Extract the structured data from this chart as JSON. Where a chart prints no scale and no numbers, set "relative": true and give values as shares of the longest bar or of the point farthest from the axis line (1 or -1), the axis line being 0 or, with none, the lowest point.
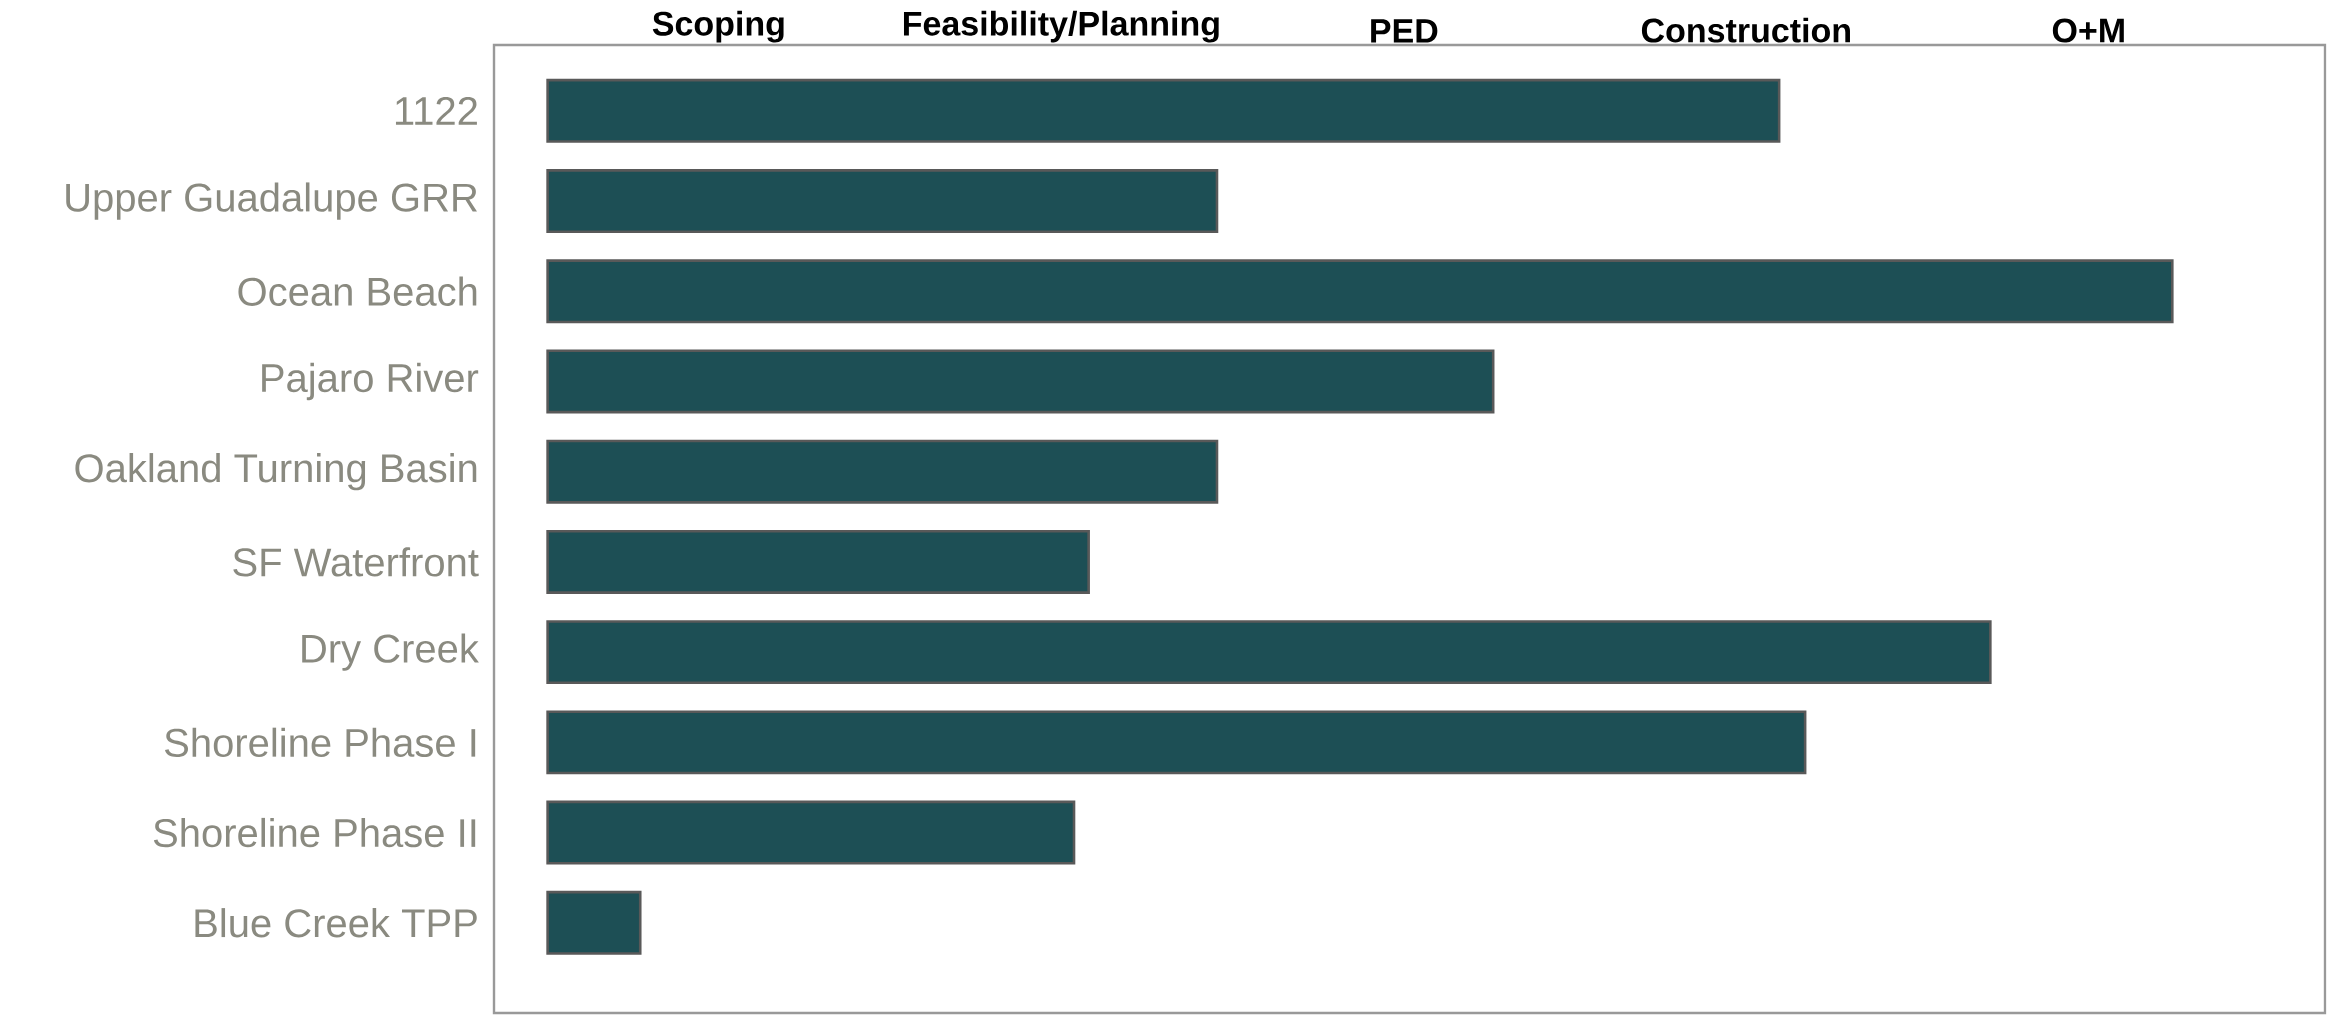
{
  "chart_data": {
    "type": "bar",
    "orientation": "horizontal",
    "relative": true,
    "categories": [
      "1122",
      "Upper Guadalupe GRR",
      "Ocean Beach",
      "Pajaro River",
      "Oakland Turning Basin",
      "SF Waterfront",
      "Dry Creek",
      "Shoreline Phase I",
      "Shoreline Phase II",
      "Blue Creek TPP"
    ],
    "values": [
      0.758,
      0.412,
      1,
      0.582,
      0.412,
      0.333,
      0.888,
      0.774,
      0.324,
      0.057
    ],
    "color": "#1d4f55",
    "annotations": [
      "Scoping",
      "Feasibility/Planning",
      "PED",
      "Construction",
      "O+M"
    ]
  }
}
